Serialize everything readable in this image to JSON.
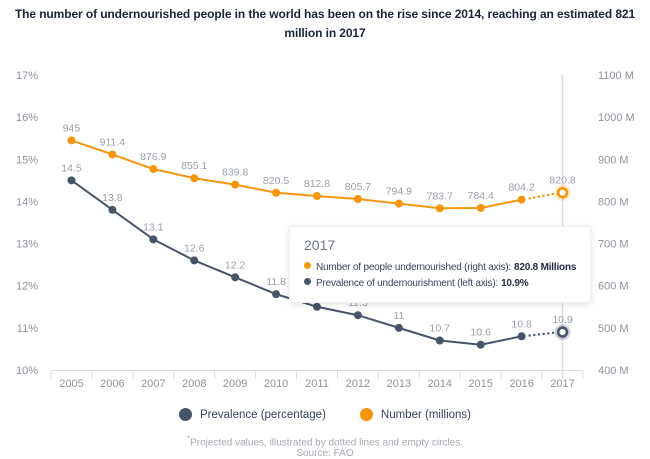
{
  "title": {
    "line1": "The number of undernourished people in the world has been on the rise since 2014, reaching an estimated 821",
    "line2": "million in 2017"
  },
  "chart_data": {
    "type": "line",
    "categories": [
      "2005",
      "2006",
      "2007",
      "2008",
      "2009",
      "2010",
      "2011",
      "2012",
      "2013",
      "2014",
      "2015",
      "2016",
      "2017"
    ],
    "series": [
      {
        "name": "Number (millions)",
        "axis": "right",
        "color": "#F7950D",
        "halo_color": "rgba(247,149,13,0.22)",
        "values": [
          945,
          911.4,
          876.9,
          855.1,
          839.8,
          820.5,
          812.8,
          805.7,
          794.9,
          783.7,
          784.4,
          804.2,
          820.8
        ],
        "projected_last": true
      },
      {
        "name": "Prevalence (percentage)",
        "axis": "left",
        "color": "#485568",
        "halo_color": "rgba(72,85,104,0.25)",
        "values": [
          14.5,
          13.8,
          13.1,
          12.6,
          12.2,
          11.8,
          11.5,
          11.3,
          11,
          10.7,
          10.6,
          10.8,
          10.9
        ],
        "projected_last": true
      }
    ],
    "left_axis": {
      "min": 10,
      "max": 17,
      "tick_values": [
        17,
        16,
        15,
        14,
        13,
        12,
        11,
        10
      ],
      "tick_labels": [
        "17%",
        "16%",
        "15%",
        "14%",
        "13%",
        "12%",
        "11%",
        "10%"
      ]
    },
    "right_axis": {
      "min": 400,
      "max": 1100,
      "tick_values": [
        1100,
        1000,
        900,
        800,
        700,
        600,
        500,
        400
      ],
      "tick_labels": [
        "1100 M",
        "1000 M",
        "900 M",
        "800 M",
        "700 M",
        "600 M",
        "500 M",
        "400 M"
      ]
    },
    "highlight_category": "2017",
    "grid": false,
    "legend_position": "bottom"
  },
  "tooltip": {
    "title": "2017",
    "rows": [
      {
        "color": "#F7950D",
        "text": "Number of people undernourished (right axis):",
        "value": "820.8 Millions"
      },
      {
        "color": "#485568",
        "text": "Prevalence of undernourishment (left axis):",
        "value": "10.9%"
      }
    ]
  },
  "legend": [
    {
      "label": "Prevalence (percentage)",
      "color": "#485568"
    },
    {
      "label": "Number (millions)",
      "color": "#F7950D"
    }
  ],
  "footnote": {
    "marker": "*",
    "text": "Projected values, illustrated by dotted lines and empty circles.",
    "source": "Source: FAO"
  }
}
